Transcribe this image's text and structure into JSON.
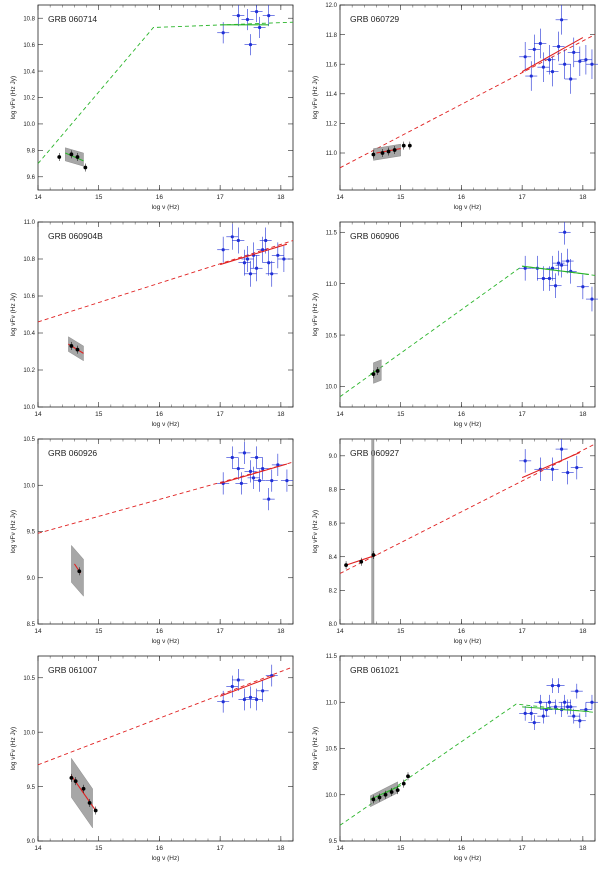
{
  "figure": {
    "x_axis_label": "log ν (Hz)",
    "y_axis_label": "log νFν (Hz Jy)"
  },
  "style": {
    "x_color": "#1f2fd6",
    "opt_color": "#000000",
    "band_color": "#8a8a8a",
    "green": "#2bb52b",
    "red": "#e02020",
    "frame": "#222222"
  },
  "chart_data": [
    {
      "type": "scatter",
      "title": "GRB 060714",
      "xlim": [
        14,
        18.2
      ],
      "ylim": [
        9.5,
        10.9
      ],
      "xticks": [
        14,
        15,
        16,
        17,
        18
      ],
      "xtick_labels": [
        "14",
        "15",
        "16",
        "17",
        "18"
      ],
      "yticks": [
        9.6,
        9.8,
        10.0,
        10.2,
        10.4,
        10.6,
        10.8
      ],
      "ytick_labels": [
        "9.6",
        "9.8",
        "10.0",
        "10.2",
        "10.4",
        "10.6",
        "10.8"
      ],
      "model": {
        "color": "green",
        "points": [
          [
            14,
            9.7
          ],
          [
            15.9,
            10.73
          ],
          [
            18.2,
            10.77
          ]
        ]
      },
      "xfit": {
        "color": "green",
        "x": [
          17.0,
          17.8
        ],
        "y": [
          10.75,
          10.75
        ]
      },
      "optfit": {
        "color": "green",
        "x": [
          14.45,
          14.75
        ],
        "y": [
          9.78,
          9.72
        ]
      },
      "band": {
        "x": [
          14.45,
          14.75
        ],
        "y": [
          9.77,
          9.73
        ],
        "w": 0.05
      },
      "xray": [
        [
          17.05,
          10.69
        ],
        [
          17.3,
          10.82
        ],
        [
          17.45,
          10.79
        ],
        [
          17.5,
          10.6
        ],
        [
          17.6,
          10.85
        ],
        [
          17.65,
          10.73
        ],
        [
          17.8,
          10.82
        ]
      ],
      "xray_err": 0.08,
      "optical": [
        [
          14.35,
          9.75
        ],
        [
          14.55,
          9.77
        ],
        [
          14.65,
          9.75
        ],
        [
          14.78,
          9.67
        ]
      ]
    },
    {
      "type": "scatter",
      "title": "GRB 060729",
      "xlim": [
        14,
        18.2
      ],
      "ylim": [
        10.75,
        12.0
      ],
      "xticks": [
        14,
        15,
        16,
        17,
        18
      ],
      "xtick_labels": [
        "14",
        "15",
        "16",
        "17",
        "18"
      ],
      "yticks": [
        11.0,
        11.2,
        11.4,
        11.6,
        11.8,
        12.0
      ],
      "ytick_labels": [
        "11.0",
        "11.2",
        "11.4",
        "11.6",
        "11.8",
        "12.0"
      ],
      "model": {
        "color": "red",
        "points": [
          [
            14,
            10.9
          ],
          [
            18.2,
            11.8
          ]
        ]
      },
      "xfit": {
        "color": "red",
        "x": [
          17.0,
          18.0
        ],
        "y": [
          11.55,
          11.78
        ]
      },
      "optfit": {
        "color": "red",
        "x": [
          14.6,
          15.0
        ],
        "y": [
          11.0,
          11.03
        ]
      },
      "band": {
        "x": [
          14.55,
          15.0
        ],
        "y": [
          10.99,
          11.02
        ],
        "w": 0.04
      },
      "xray": [
        [
          17.05,
          11.65
        ],
        [
          17.15,
          11.52
        ],
        [
          17.2,
          11.7
        ],
        [
          17.3,
          11.74
        ],
        [
          17.35,
          11.58
        ],
        [
          17.45,
          11.63
        ],
        [
          17.5,
          11.55
        ],
        [
          17.6,
          11.72
        ],
        [
          17.65,
          11.9
        ],
        [
          17.7,
          11.6
        ],
        [
          17.8,
          11.5
        ],
        [
          17.85,
          11.68
        ],
        [
          17.95,
          11.62
        ],
        [
          18.05,
          11.63
        ],
        [
          18.15,
          11.6
        ]
      ],
      "xray_err": 0.1,
      "optical": [
        [
          14.55,
          10.99
        ],
        [
          14.7,
          11.0
        ],
        [
          14.8,
          11.01
        ],
        [
          14.9,
          11.02
        ],
        [
          15.05,
          11.05
        ],
        [
          15.15,
          11.05
        ]
      ]
    },
    {
      "type": "scatter",
      "title": "GRB 060904B",
      "xlim": [
        14,
        18.2
      ],
      "ylim": [
        10.0,
        11.0
      ],
      "xticks": [
        14,
        15,
        16,
        17,
        18
      ],
      "xtick_labels": [
        "14",
        "15",
        "16",
        "17",
        "18"
      ],
      "yticks": [
        10.0,
        10.2,
        10.4,
        10.6,
        10.8,
        11.0
      ],
      "ytick_labels": [
        "10.0",
        "10.2",
        "10.4",
        "10.6",
        "10.8",
        "11.0"
      ],
      "model": {
        "color": "red",
        "points": [
          [
            14,
            10.46
          ],
          [
            18.2,
            10.9
          ]
        ]
      },
      "xfit": {
        "color": "red",
        "x": [
          17.0,
          18.1
        ],
        "y": [
          10.77,
          10.88
        ]
      },
      "optfit": {
        "color": "red",
        "x": [
          14.5,
          14.75
        ],
        "y": [
          10.34,
          10.29
        ]
      },
      "band": {
        "x": [
          14.5,
          14.75
        ],
        "y": [
          10.34,
          10.29
        ],
        "w": 0.04
      },
      "xray": [
        [
          17.05,
          10.85
        ],
        [
          17.2,
          10.92
        ],
        [
          17.3,
          10.9
        ],
        [
          17.4,
          10.78
        ],
        [
          17.45,
          10.8
        ],
        [
          17.5,
          10.72
        ],
        [
          17.55,
          10.82
        ],
        [
          17.6,
          10.75
        ],
        [
          17.7,
          10.85
        ],
        [
          17.75,
          10.9
        ],
        [
          17.8,
          10.78
        ],
        [
          17.85,
          10.72
        ],
        [
          17.95,
          10.82
        ],
        [
          18.05,
          10.8
        ]
      ],
      "xray_err": 0.07,
      "optical": [
        [
          14.55,
          10.33
        ],
        [
          14.65,
          10.31
        ]
      ]
    },
    {
      "type": "scatter",
      "title": "GRB 060906",
      "xlim": [
        14,
        18.2
      ],
      "ylim": [
        9.8,
        11.6
      ],
      "xticks": [
        14,
        15,
        16,
        17,
        18
      ],
      "xtick_labels": [
        "14",
        "15",
        "16",
        "17",
        "18"
      ],
      "yticks": [
        10.0,
        10.5,
        11.0,
        11.5
      ],
      "ytick_labels": [
        "10.0",
        "10.5",
        "11.0",
        "11.5"
      ],
      "model": {
        "color": "green",
        "points": [
          [
            14,
            9.9
          ],
          [
            17.0,
            11.17
          ],
          [
            18.2,
            11.08
          ]
        ]
      },
      "xfit": {
        "color": "green",
        "x": [
          17.0,
          18.1
        ],
        "y": [
          11.17,
          11.09
        ]
      },
      "optfit": {
        "color": "green",
        "x": [
          14.5,
          14.65
        ],
        "y": [
          10.12,
          10.17
        ]
      },
      "band": {
        "x": [
          14.55,
          14.68
        ],
        "y": [
          10.13,
          10.16
        ],
        "w": 0.1
      },
      "xray": [
        [
          17.05,
          11.15
        ],
        [
          17.25,
          11.15
        ],
        [
          17.35,
          11.05
        ],
        [
          17.45,
          11.05
        ],
        [
          17.5,
          11.15
        ],
        [
          17.55,
          10.98
        ],
        [
          17.6,
          11.2
        ],
        [
          17.65,
          11.18
        ],
        [
          17.7,
          11.5
        ],
        [
          17.75,
          11.22
        ],
        [
          17.8,
          11.12
        ],
        [
          18.0,
          10.97
        ],
        [
          18.15,
          10.85
        ]
      ],
      "xray_err": 0.12,
      "optical": [
        [
          14.55,
          10.12
        ],
        [
          14.62,
          10.15
        ]
      ]
    },
    {
      "type": "scatter",
      "title": "GRB 060926",
      "xlim": [
        14,
        18.2
      ],
      "ylim": [
        8.5,
        10.5
      ],
      "xticks": [
        14,
        15,
        16,
        17,
        18
      ],
      "xtick_labels": [
        "14",
        "15",
        "16",
        "17",
        "18"
      ],
      "yticks": [
        8.5,
        9.0,
        9.5,
        10.0,
        10.5
      ],
      "ytick_labels": [
        "8.5",
        "9.0",
        "9.5",
        "10.0",
        "10.5"
      ],
      "model": {
        "color": "red",
        "points": [
          [
            14,
            9.48
          ],
          [
            18.2,
            10.25
          ]
        ]
      },
      "xfit": {
        "color": "red",
        "x": [
          17.0,
          18.1
        ],
        "y": [
          10.02,
          10.23
        ]
      },
      "optfit": {
        "color": "red",
        "x": [
          14.6,
          14.7
        ],
        "y": [
          9.15,
          9.05
        ]
      },
      "band": {
        "x": [
          14.55,
          14.75
        ],
        "y": [
          9.15,
          9.0
        ],
        "w": 0.2
      },
      "xray": [
        [
          17.05,
          10.02
        ],
        [
          17.2,
          10.3
        ],
        [
          17.3,
          10.18
        ],
        [
          17.35,
          10.02
        ],
        [
          17.4,
          10.35
        ],
        [
          17.5,
          10.15
        ],
        [
          17.55,
          10.08
        ],
        [
          17.6,
          10.3
        ],
        [
          17.65,
          10.05
        ],
        [
          17.7,
          10.18
        ],
        [
          17.8,
          9.85
        ],
        [
          17.85,
          10.05
        ],
        [
          17.95,
          10.22
        ],
        [
          18.1,
          10.05
        ]
      ],
      "xray_err": 0.12,
      "optical": [
        [
          14.68,
          9.07
        ]
      ]
    },
    {
      "type": "scatter",
      "title": "GRB 060927",
      "xlim": [
        14,
        18.2
      ],
      "ylim": [
        8.0,
        9.1
      ],
      "xticks": [
        14,
        15,
        16,
        17,
        18
      ],
      "xtick_labels": [
        "14",
        "15",
        "16",
        "17",
        "18"
      ],
      "yticks": [
        8.0,
        8.2,
        8.4,
        8.6,
        8.8,
        9.0
      ],
      "ytick_labels": [
        "8.0",
        "8.2",
        "8.4",
        "8.6",
        "8.8",
        "9.0"
      ],
      "model": {
        "color": "red",
        "points": [
          [
            14,
            8.3
          ],
          [
            18.2,
            9.07
          ]
        ]
      },
      "xfit": {
        "color": "red",
        "x": [
          17.0,
          17.95
        ],
        "y": [
          8.87,
          9.02
        ]
      },
      "optfit": {
        "color": "red",
        "x": [
          14.1,
          14.6
        ],
        "y": [
          8.35,
          8.41
        ]
      },
      "band": {
        "x": [
          14.52,
          14.56
        ],
        "y": [
          8.4,
          8.42
        ],
        "w": 0.9
      },
      "xray": [
        [
          17.05,
          8.97
        ],
        [
          17.3,
          8.92
        ],
        [
          17.5,
          8.92
        ],
        [
          17.65,
          9.04
        ],
        [
          17.75,
          8.9
        ],
        [
          17.9,
          8.93
        ]
      ],
      "xray_err": 0.07,
      "optical": [
        [
          14.1,
          8.35
        ],
        [
          14.35,
          8.37
        ],
        [
          14.55,
          8.41
        ]
      ]
    },
    {
      "type": "scatter",
      "title": "GRB 061007",
      "xlim": [
        14,
        18.2
      ],
      "ylim": [
        9.0,
        10.7
      ],
      "xticks": [
        14,
        15,
        16,
        17,
        18
      ],
      "xtick_labels": [
        "14",
        "15",
        "16",
        "17",
        "18"
      ],
      "yticks": [
        9.0,
        9.5,
        10.0,
        10.5
      ],
      "ytick_labels": [
        "9.0",
        "9.5",
        "10.0",
        "10.5"
      ],
      "model": {
        "color": "red",
        "points": [
          [
            14,
            9.7
          ],
          [
            18.2,
            10.6
          ]
        ]
      },
      "xfit": {
        "color": "red",
        "x": [
          17.0,
          17.9
        ],
        "y": [
          10.33,
          10.52
        ]
      },
      "optfit": {
        "color": "red",
        "x": [
          14.55,
          14.95
        ],
        "y": [
          9.6,
          9.28
        ]
      },
      "band": {
        "x": [
          14.55,
          14.9
        ],
        "y": [
          9.58,
          9.3
        ],
        "w": 0.18
      },
      "xray": [
        [
          17.05,
          10.28
        ],
        [
          17.2,
          10.42
        ],
        [
          17.3,
          10.48
        ],
        [
          17.4,
          10.3
        ],
        [
          17.5,
          10.32
        ],
        [
          17.6,
          10.3
        ],
        [
          17.7,
          10.38
        ],
        [
          17.85,
          10.52
        ]
      ],
      "xray_err": 0.1,
      "optical": [
        [
          14.55,
          9.58
        ],
        [
          14.62,
          9.55
        ],
        [
          14.75,
          9.48
        ],
        [
          14.85,
          9.35
        ],
        [
          14.95,
          9.28
        ]
      ]
    },
    {
      "type": "scatter",
      "title": "GRB 061021",
      "xlim": [
        14,
        18.2
      ],
      "ylim": [
        9.5,
        11.5
      ],
      "xticks": [
        14,
        15,
        16,
        17,
        18
      ],
      "xtick_labels": [
        "14",
        "15",
        "16",
        "17",
        "18"
      ],
      "yticks": [
        9.5,
        10.0,
        10.5,
        11.0,
        11.5
      ],
      "ytick_labels": [
        "9.5",
        "10.0",
        "10.5",
        "11.0",
        "11.5"
      ],
      "model": {
        "color": "green",
        "points": [
          [
            14,
            9.67
          ],
          [
            16.9,
            10.98
          ],
          [
            18.2,
            10.89
          ]
        ]
      },
      "xfit": {
        "color": "green",
        "x": [
          17.0,
          18.1
        ],
        "y": [
          10.95,
          10.9
        ]
      },
      "optfit": {
        "color": "green",
        "x": [
          14.5,
          15.0
        ],
        "y": [
          9.95,
          10.1
        ]
      },
      "band": {
        "x": [
          14.5,
          14.95
        ],
        "y": [
          9.93,
          10.08
        ],
        "w": 0.06
      },
      "xray": [
        [
          17.05,
          10.88
        ],
        [
          17.15,
          10.88
        ],
        [
          17.2,
          10.78
        ],
        [
          17.3,
          11.0
        ],
        [
          17.35,
          10.85
        ],
        [
          17.4,
          10.92
        ],
        [
          17.45,
          11.0
        ],
        [
          17.5,
          11.18
        ],
        [
          17.55,
          10.95
        ],
        [
          17.6,
          11.18
        ],
        [
          17.65,
          10.92
        ],
        [
          17.7,
          11.0
        ],
        [
          17.75,
          10.95
        ],
        [
          17.8,
          10.95
        ],
        [
          17.85,
          10.85
        ],
        [
          17.9,
          11.12
        ],
        [
          17.95,
          10.8
        ],
        [
          18.05,
          10.92
        ],
        [
          18.15,
          11.0
        ]
      ],
      "xray_err": 0.08,
      "optical": [
        [
          14.55,
          9.95
        ],
        [
          14.65,
          9.97
        ],
        [
          14.75,
          10.0
        ],
        [
          14.85,
          10.03
        ],
        [
          14.95,
          10.05
        ],
        [
          15.05,
          10.12
        ],
        [
          15.12,
          10.2
        ]
      ]
    }
  ]
}
